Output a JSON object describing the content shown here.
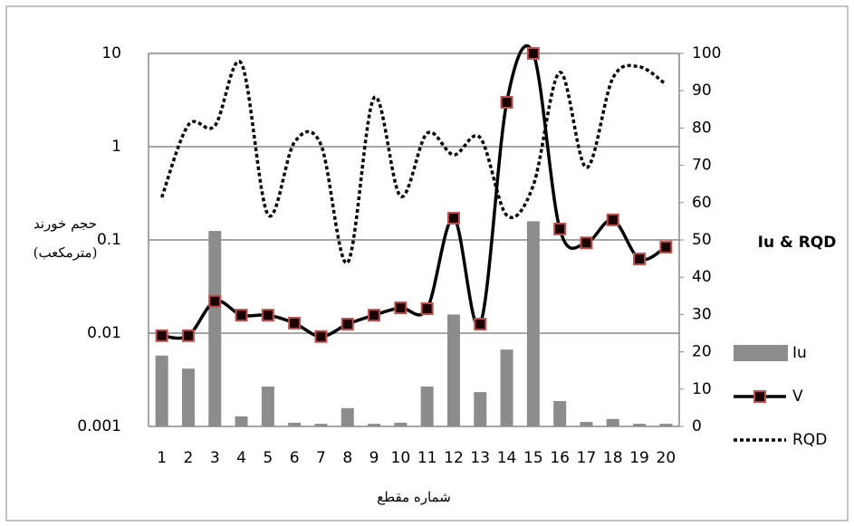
{
  "chart_data": {
    "type": "combo",
    "y_label": [
      "حجم خورند",
      "(مترمکعب)"
    ],
    "y2_label": "Iu & RQD",
    "x_label": "شماره مقطع",
    "categories": [
      "1",
      "2",
      "3",
      "4",
      "5",
      "6",
      "7",
      "8",
      "9",
      "10",
      "11",
      "12",
      "13",
      "14",
      "15",
      "16",
      "17",
      "18",
      "19",
      "20"
    ],
    "yscale": "log",
    "ylim": [
      0.001,
      10
    ],
    "yticks": [
      0.001,
      0.01,
      0.1,
      1,
      10
    ],
    "y2lim": [
      0,
      100
    ],
    "y2ticks": [
      0,
      10,
      20,
      30,
      40,
      50,
      60,
      70,
      80,
      90,
      100
    ],
    "grid": true,
    "legend": "right",
    "series": [
      {
        "name": "Iu",
        "type": "bar",
        "axis": "y2",
        "color": "#8c8c8c",
        "values": [
          19,
          15.5,
          52.4,
          2.7,
          10.7,
          1,
          0.7,
          4.9,
          0.7,
          1,
          10.7,
          30,
          9.2,
          20.6,
          55,
          6.8,
          1.2,
          2,
          0.7,
          0.7
        ]
      },
      {
        "name": "V",
        "type": "line",
        "color": "#000000",
        "marker_color": "#c0504d",
        "values": [
          0.0094,
          0.0094,
          0.022,
          0.0156,
          0.0156,
          0.0128,
          0.0092,
          0.0125,
          0.0156,
          0.0187,
          0.0183,
          0.171,
          0.0125,
          2.99,
          10,
          0.131,
          0.093,
          0.164,
          0.0625,
          0.0836
        ]
      },
      {
        "name": "RQD",
        "type": "dotted",
        "axis": "y2",
        "color": "#000000",
        "values": [
          61.4,
          80.8,
          80.6,
          97.3,
          56.8,
          76.2,
          75.5,
          43.9,
          88.1,
          61.7,
          78.6,
          72.8,
          77.4,
          56.6,
          64.6,
          94.9,
          69.4,
          93.4,
          96.4,
          91.7
        ]
      }
    ]
  }
}
